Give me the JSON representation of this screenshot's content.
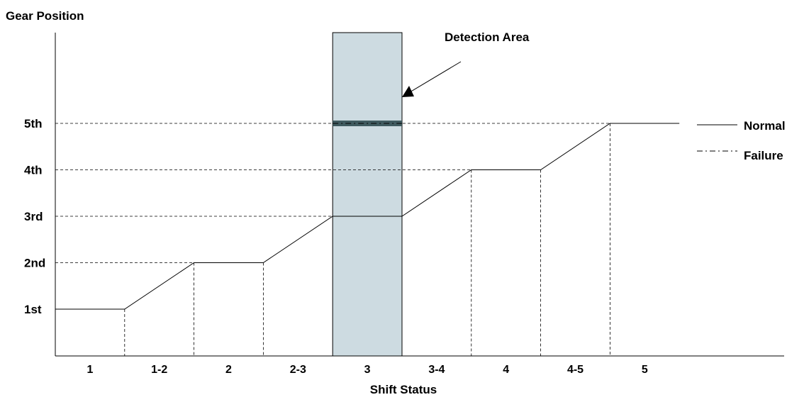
{
  "chart_data": {
    "type": "line",
    "ylabel": "Gear Position",
    "xlabel": "Shift Status",
    "y_categories": [
      "1st",
      "2nd",
      "3rd",
      "4th",
      "5th"
    ],
    "x_categories": [
      "1",
      "1-2",
      "2",
      "2-3",
      "3",
      "3-4",
      "4",
      "4-5",
      "5"
    ],
    "series": [
      {
        "name": "Normal",
        "style": "solid",
        "x": [
          0,
          1,
          2,
          3,
          4,
          5,
          6,
          7,
          8,
          9
        ],
        "y": [
          1,
          1,
          2,
          2,
          3,
          3,
          4,
          4,
          5,
          5
        ]
      },
      {
        "name": "Failure",
        "style": "dash-dot",
        "x": [
          4,
          5
        ],
        "y": [
          5,
          5
        ]
      }
    ],
    "highlight": {
      "label": "Detection Area",
      "x_from": 4,
      "x_to": 5,
      "color": "#cddbe1"
    },
    "legend": {
      "position": "right",
      "entries": [
        "Normal",
        "Failure"
      ]
    },
    "grid": "dashed-reference-lines",
    "xlim": [
      0,
      10.5
    ],
    "ylim": [
      0,
      5
    ]
  }
}
